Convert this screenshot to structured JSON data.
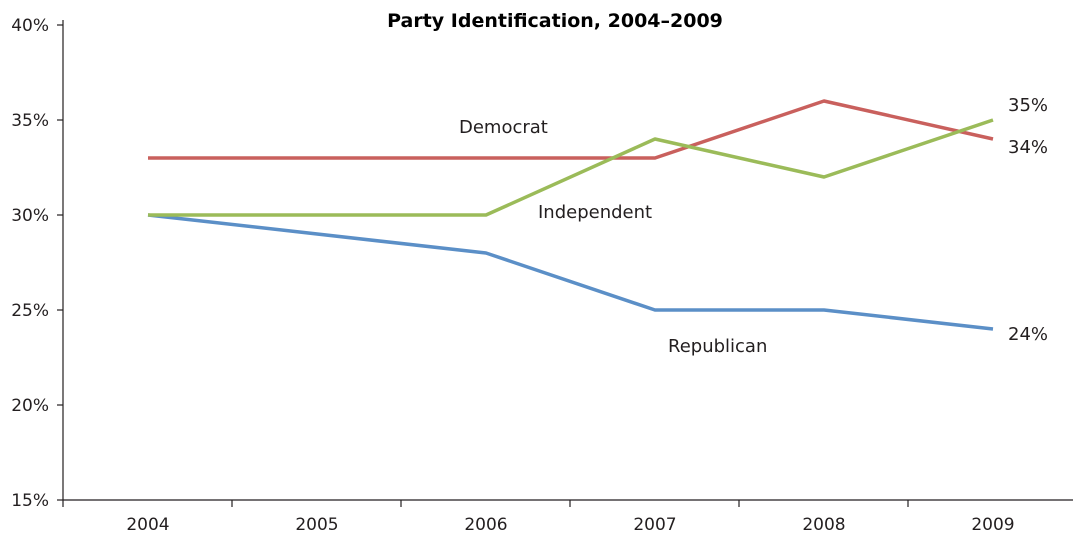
{
  "chart_data": {
    "type": "line",
    "title": "Party Identification, 2004–2009",
    "xlabel": "",
    "ylabel": "",
    "categories": [
      "2004",
      "2005",
      "2006",
      "2007",
      "2008",
      "2009"
    ],
    "ylim": [
      15,
      40
    ],
    "yticks": [
      15,
      20,
      25,
      30,
      35,
      40
    ],
    "ytick_labels": [
      "15%",
      "20%",
      "25%",
      "30%",
      "35%",
      "40%"
    ],
    "grid": false,
    "legend": "none (series labelled inline)",
    "series": [
      {
        "name": "Democrat",
        "x": [
          "2004",
          "2007",
          "2008",
          "2009"
        ],
        "values": [
          33,
          33,
          36,
          34
        ],
        "color": "#c9605d",
        "end_label": "34%"
      },
      {
        "name": "Independent",
        "x": [
          "2004",
          "2006",
          "2007",
          "2008",
          "2009"
        ],
        "values": [
          30,
          30,
          34,
          32,
          35
        ],
        "color": "#9bbb59",
        "end_label": "35%"
      },
      {
        "name": "Republican",
        "x": [
          "2004",
          "2006",
          "2007",
          "2008",
          "2009"
        ],
        "values": [
          30,
          28,
          25,
          25,
          24
        ],
        "color": "#5b8fc7",
        "end_label": "24%"
      }
    ]
  }
}
